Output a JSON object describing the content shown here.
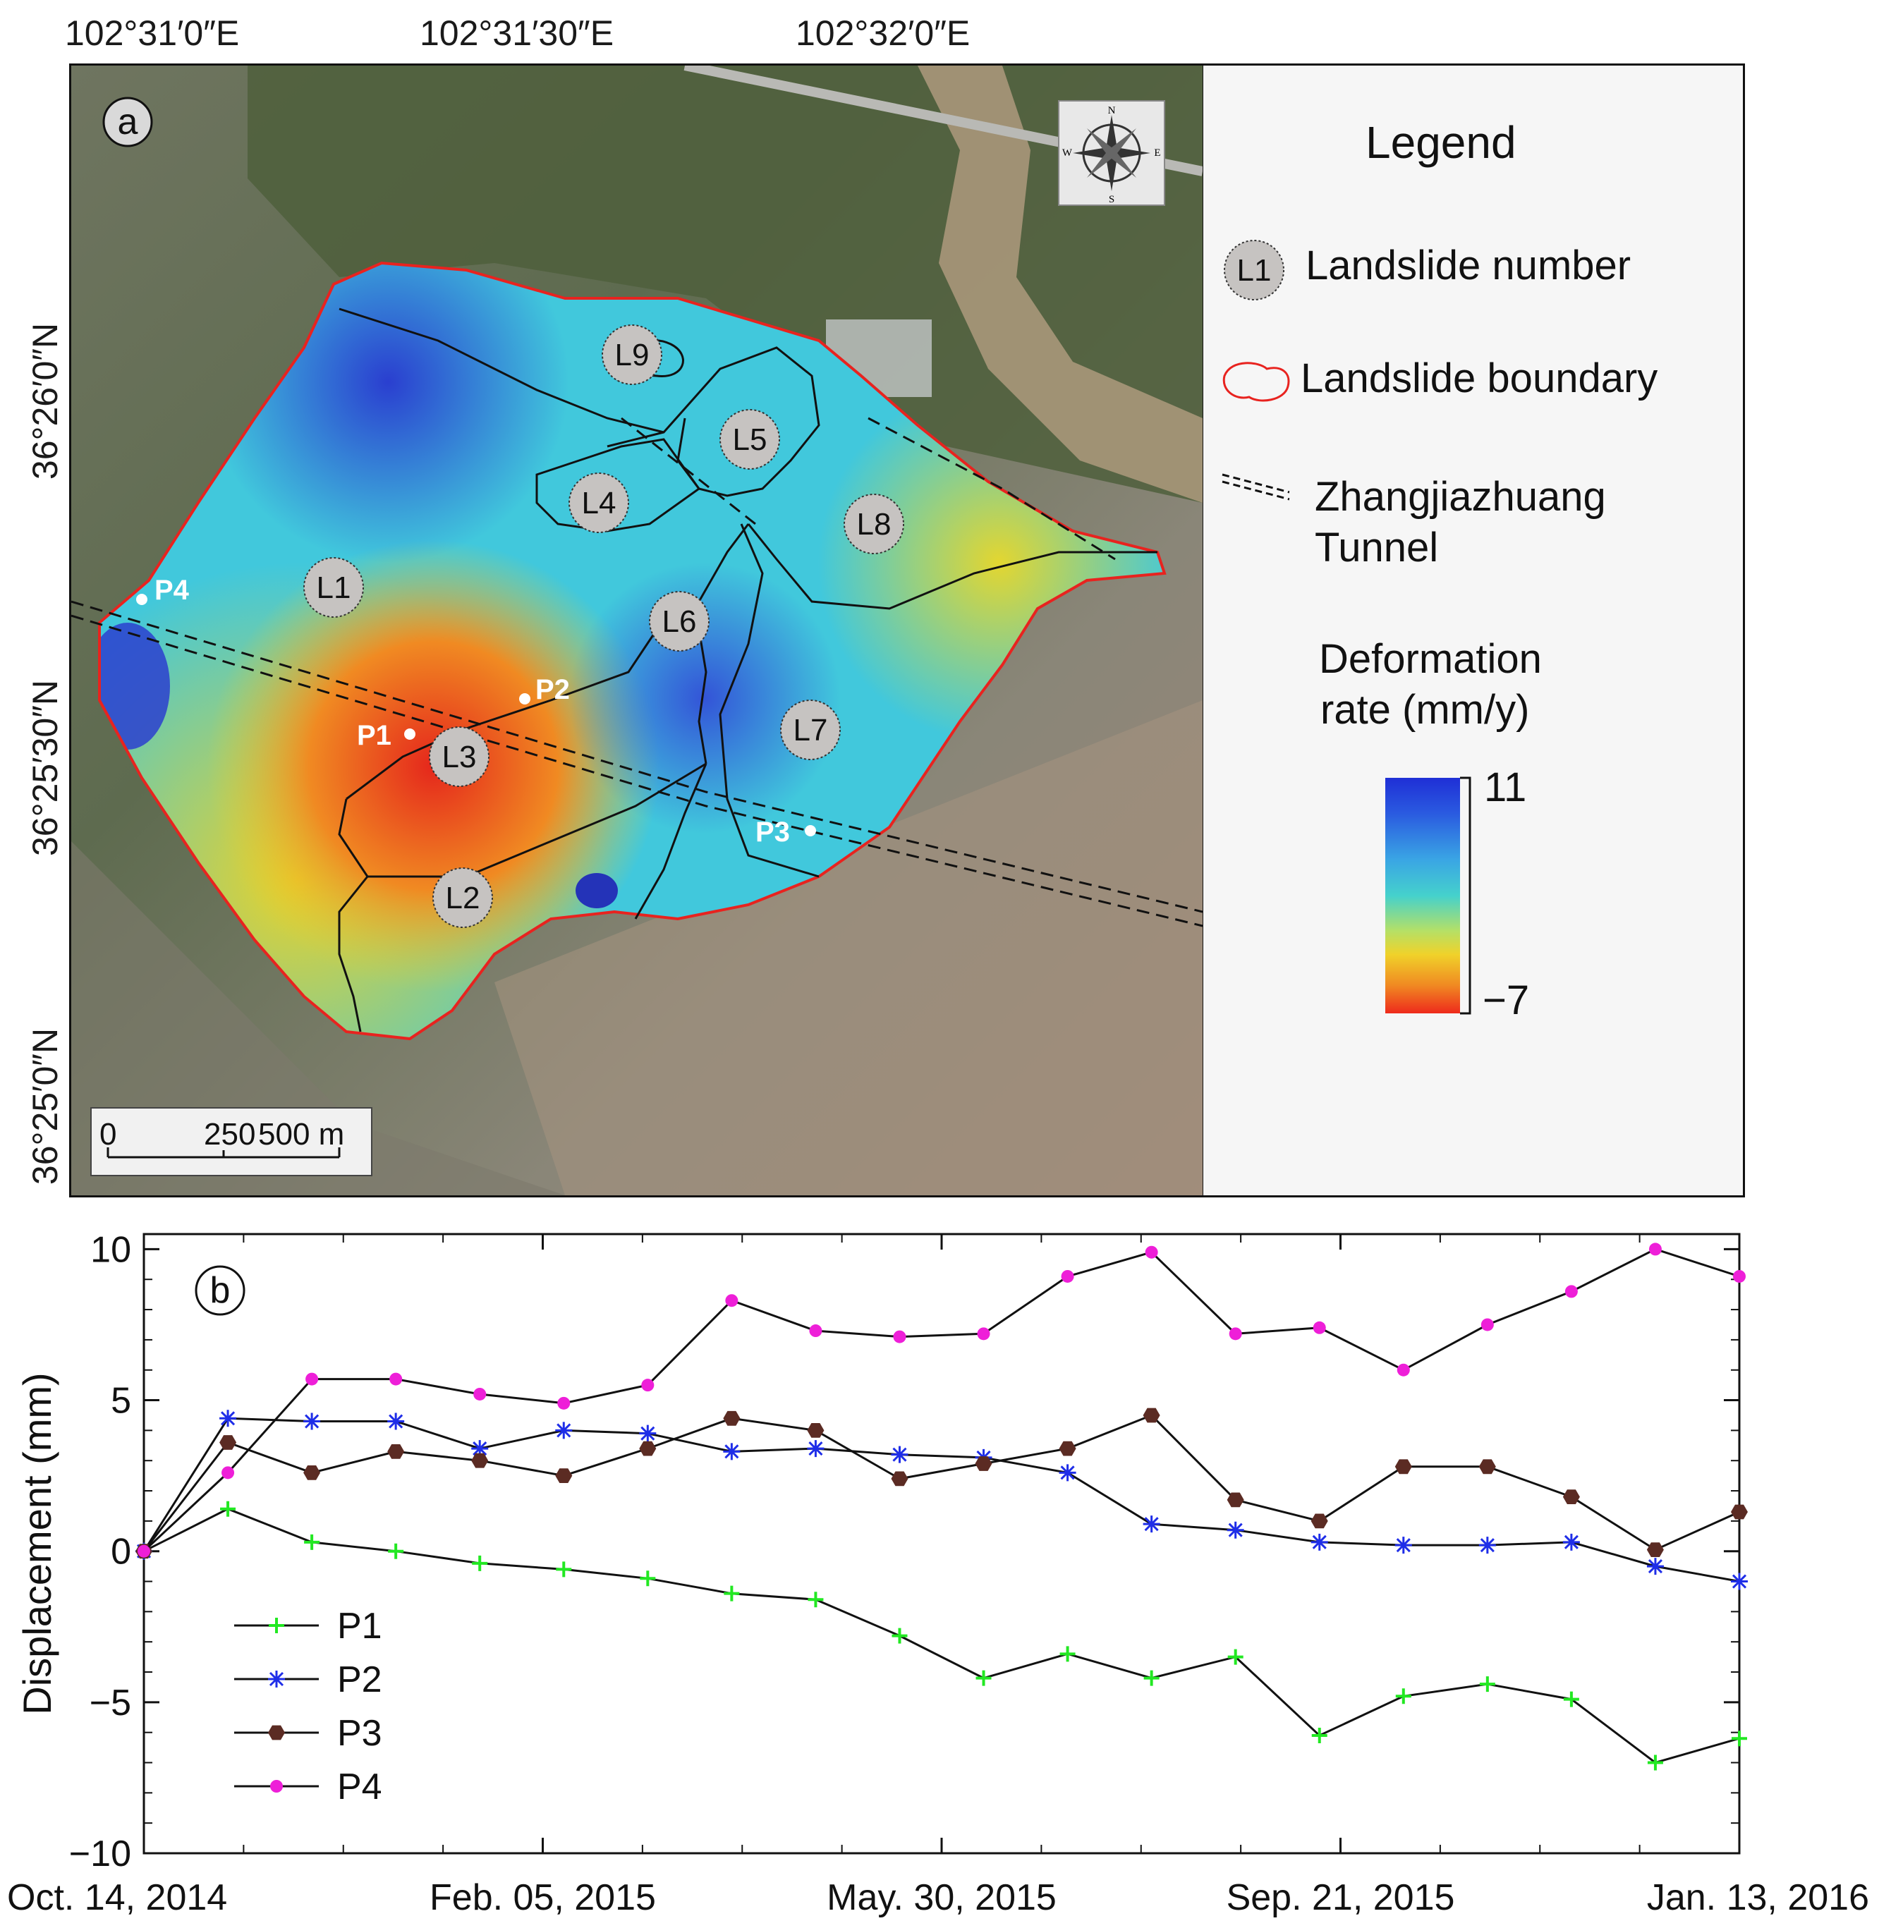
{
  "figure_a": {
    "panel_label": "a",
    "longitude_labels": [
      "102°31′0″E",
      "102°31′30″E",
      "102°32′0″E"
    ],
    "latitude_labels": [
      "36°26′0″N",
      "36°25′30″N",
      "36°25′0″N"
    ],
    "landslides": [
      "L1",
      "L2",
      "L3",
      "L4",
      "L5",
      "L6",
      "L7",
      "L8",
      "L9"
    ],
    "points": [
      "P1",
      "P2",
      "P3",
      "P4"
    ],
    "compass": [
      "N",
      "E",
      "S",
      "W"
    ],
    "scale_bar": {
      "zero": "0",
      "mid": "250",
      "end": "500 m"
    },
    "legend": {
      "title": "Legend",
      "landslide_number_symbol": "L1",
      "landslide_number": "Landslide number",
      "landslide_boundary": "Landslide boundary",
      "tunnel_line1": "Zhangjiazhuang",
      "tunnel_line2": "Tunnel",
      "deformation_line1": "Deformation",
      "deformation_line2": "rate (mm/y)",
      "colorbar_max": "11",
      "colorbar_min": "−7"
    },
    "colors": {
      "boundary": "#e8231f",
      "point": "#ffffff"
    }
  },
  "chart_data": {
    "type": "line",
    "panel_label": "b",
    "title": "",
    "xlabel": "",
    "ylabel": "Displacement (mm)",
    "ylim": [
      -10,
      10.5
    ],
    "y_ticks": [
      "10",
      "5",
      "0",
      "−5",
      "−10"
    ],
    "x_tick_labels": [
      "Oct. 14, 2014",
      "Feb. 05, 2015",
      "May. 30, 2015",
      "Sep. 21, 2015",
      "Jan. 13, 2016"
    ],
    "x_tick_days": [
      0,
      114,
      228,
      342,
      456
    ],
    "x_days": [
      0,
      24,
      48,
      72,
      96,
      120,
      144,
      168,
      192,
      216,
      240,
      264,
      288,
      312,
      336,
      360,
      384,
      408,
      432,
      456
    ],
    "legend_position": "bottom-left",
    "series": [
      {
        "name": "P1",
        "color": "#22e822",
        "marker": "plus",
        "values": [
          0,
          1.4,
          0.3,
          0,
          -0.4,
          -0.6,
          -0.9,
          -1.4,
          -1.6,
          -2.8,
          -4.2,
          -3.4,
          -4.2,
          -3.5,
          -6.1,
          -4.8,
          -4.4,
          -4.9,
          -7,
          -6.2
        ]
      },
      {
        "name": "P2",
        "color": "#1f2ee8",
        "marker": "star",
        "values": [
          0,
          4.4,
          4.3,
          4.3,
          3.4,
          4.0,
          3.9,
          3.3,
          3.4,
          3.2,
          3.1,
          2.6,
          0.9,
          0.7,
          0.3,
          0.2,
          0.2,
          0.3,
          -0.5,
          -1.0
        ]
      },
      {
        "name": "P3",
        "color": "#5b2b23",
        "marker": "hexagon",
        "values": [
          0,
          3.6,
          2.6,
          3.3,
          3.0,
          2.5,
          3.4,
          4.4,
          4.0,
          2.4,
          2.9,
          3.4,
          4.5,
          1.7,
          1.0,
          2.8,
          2.8,
          1.8,
          0.05,
          1.3
        ]
      },
      {
        "name": "P4",
        "color": "#ee1fd8",
        "marker": "circle",
        "values": [
          0,
          2.6,
          5.7,
          5.7,
          5.2,
          4.9,
          5.5,
          8.3,
          7.3,
          7.1,
          7.2,
          9.1,
          9.9,
          7.2,
          7.4,
          6.0,
          7.5,
          8.6,
          10.0,
          9.1
        ]
      }
    ]
  }
}
